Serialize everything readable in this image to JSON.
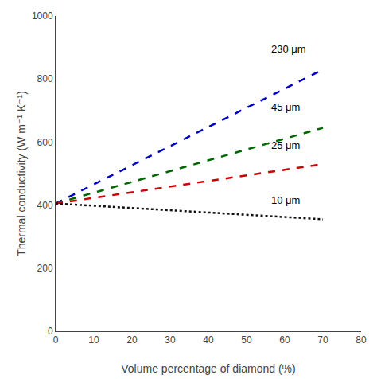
{
  "chart_data": {
    "type": "line",
    "xlabel": "Volume percentage of diamond (%)",
    "ylabel": "Thermal conductivity (W m⁻¹ K⁻¹)",
    "xlim": [
      0,
      80
    ],
    "ylim": [
      0,
      1000
    ],
    "xticks": [
      0,
      10,
      20,
      30,
      40,
      50,
      60,
      70,
      80
    ],
    "yticks": [
      0,
      200,
      400,
      600,
      800,
      1000
    ],
    "grid": false,
    "series": [
      {
        "color": "#0000cc",
        "line_style": "dashed",
        "x": [
          0,
          70
        ],
        "values": [
          405,
          830
        ]
      },
      {
        "color": "#006600",
        "line_style": "dashed",
        "x": [
          0,
          70
        ],
        "values": [
          405,
          645
        ]
      },
      {
        "color": "#cc0000",
        "line_style": "dashed",
        "x": [
          0,
          70
        ],
        "values": [
          405,
          530
        ]
      },
      {
        "color": "#111111",
        "line_style": "dotted",
        "x": [
          0,
          70
        ],
        "values": [
          405,
          355
        ]
      }
    ],
    "annotations": [
      {
        "text": "230 μm",
        "x": 56,
        "y": 895
      },
      {
        "text": "45 μm",
        "x": 56,
        "y": 710
      },
      {
        "text": "25 μm",
        "x": 56,
        "y": 590
      },
      {
        "text": "10 μm",
        "x": 56,
        "y": 415
      }
    ]
  }
}
